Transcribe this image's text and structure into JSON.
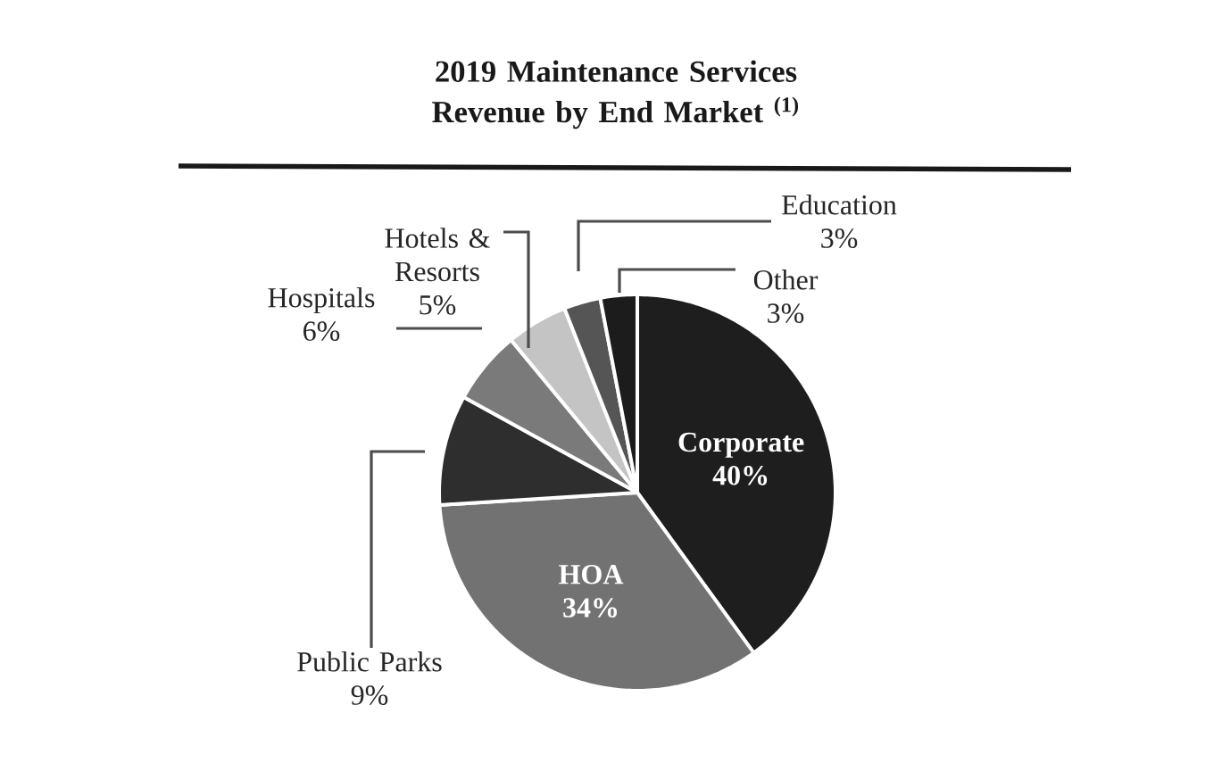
{
  "chart_data": {
    "type": "pie",
    "title": "2019 Maintenance Services Revenue by End Market $^{(1)}$",
    "categories": [
      "Corporate",
      "HOA",
      "Public Parks",
      "Hospitals",
      "Hotels & Resorts",
      "Education",
      "Other"
    ],
    "values": [
      40,
      34,
      9,
      6,
      5,
      3,
      3
    ],
    "value_labels": [
      "40%",
      "34%",
      "9%",
      "6%",
      "5%",
      "3%",
      "3%"
    ],
    "colors": [
      "#1e1e1e",
      "#727272",
      "#2e2e2e",
      "#7a7a7a",
      "#c4c4c4",
      "#555555",
      "#1c1c1c"
    ]
  }
}
